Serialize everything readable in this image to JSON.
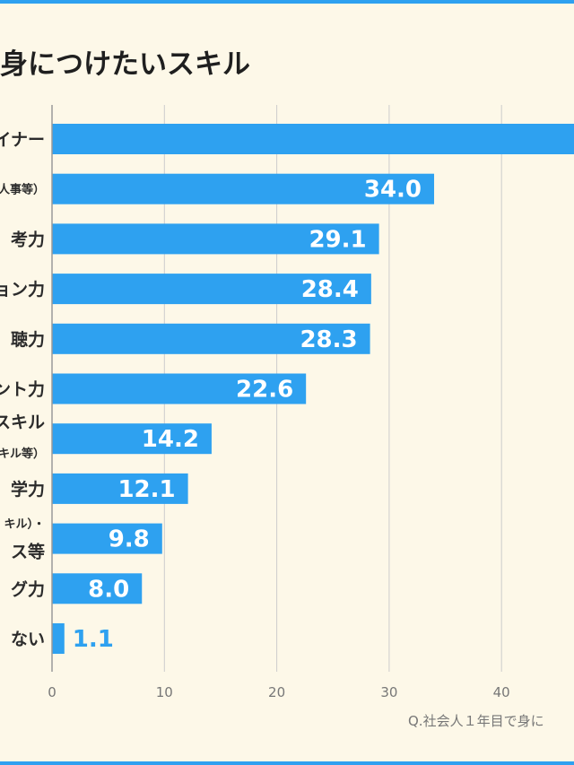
{
  "title": "身につけたいスキル",
  "note": "Q.社会人１年目で身に",
  "colors": {
    "bar": "#2ea1f0",
    "background": "#fdf8e8",
    "border": "#2ea1f0",
    "grid": "#cccccc"
  },
  "chart_data": {
    "type": "bar",
    "orientation": "horizontal",
    "categories": [
      [
        "イナー"
      ],
      [
        "人事等）"
      ],
      [
        "考力"
      ],
      [
        "ョン力"
      ],
      [
        "聴力"
      ],
      [
        "ント力"
      ],
      [
        "スキル",
        "キル等）"
      ],
      [
        "学力"
      ],
      [
        "キル）・",
        "ス等"
      ],
      [
        "グ力"
      ],
      [
        "ない"
      ]
    ],
    "values": [
      null,
      34.0,
      29.1,
      28.4,
      28.3,
      22.6,
      14.2,
      12.1,
      9.8,
      8.0,
      1.1
    ],
    "value_labels": [
      "",
      "34.0",
      "29.1",
      "28.4",
      "28.3",
      "22.6",
      "14.2",
      "12.1",
      "9.8",
      "8.0",
      "1.1"
    ],
    "first_bar_value_beyond_view": 50,
    "x_ticks": [
      "0",
      "10",
      "20",
      "30",
      "40"
    ],
    "xlim": [
      0,
      40
    ],
    "grid": true
  }
}
